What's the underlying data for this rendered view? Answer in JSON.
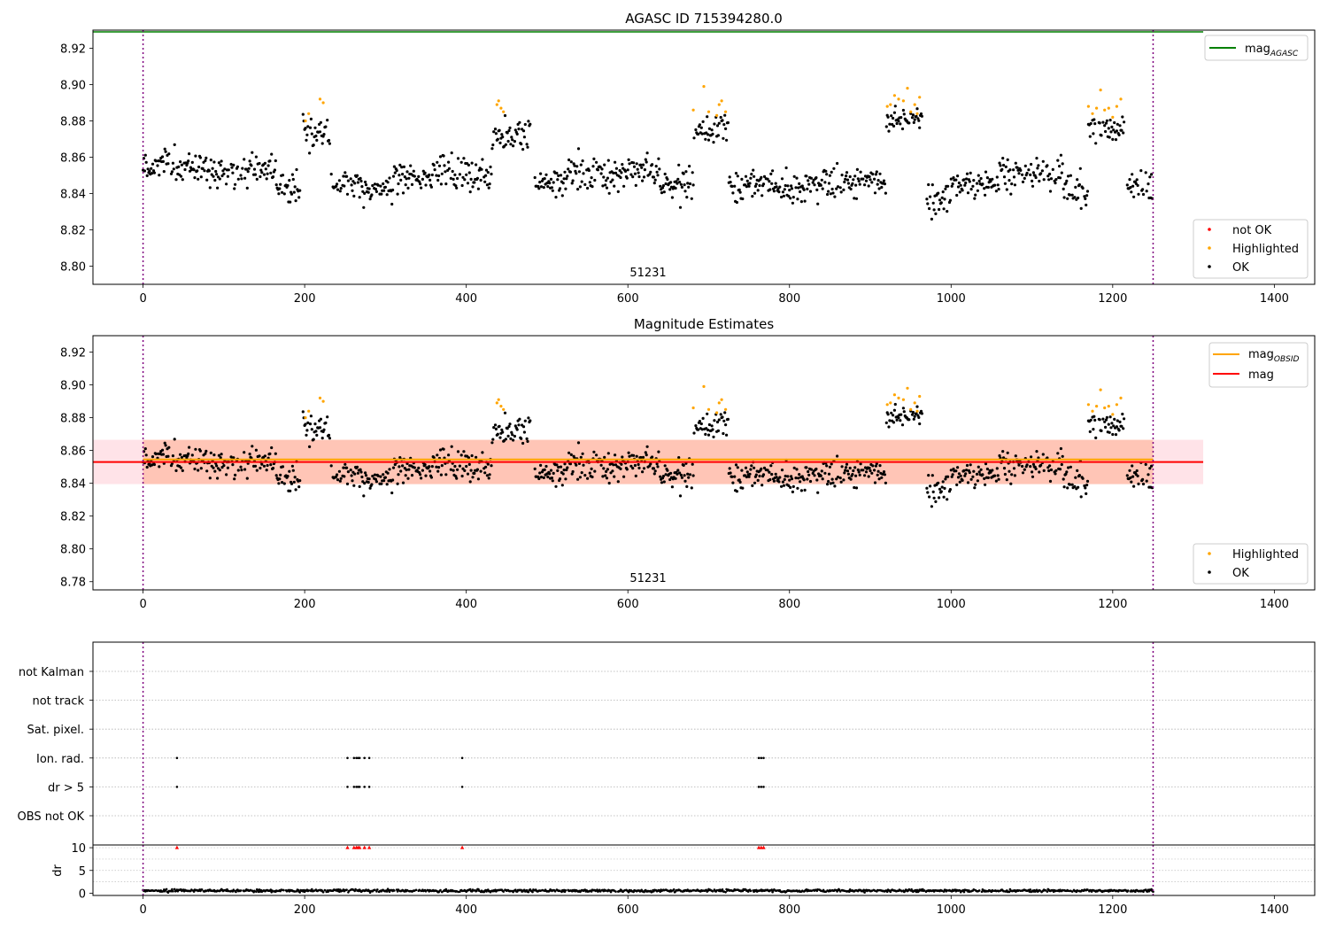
{
  "chart_data": [
    {
      "id": "agasc-panel",
      "type": "scatter",
      "title": "AGASC ID 715394280.0",
      "annotation": "51231",
      "xlim": [
        -62,
        1450
      ],
      "ylim": [
        8.79,
        8.93
      ],
      "xticks": [
        0,
        200,
        400,
        600,
        800,
        1000,
        1200,
        1400
      ],
      "yticks": [
        8.8,
        8.82,
        8.84,
        8.86,
        8.88,
        8.9,
        8.92
      ],
      "vlines": [
        0,
        1250
      ],
      "hlines": [
        {
          "name": "mag",
          "sub": "AGASC",
          "y": 8.929,
          "x0": -62,
          "x1": 1312,
          "color": "#008000"
        }
      ],
      "legends": [
        {
          "position": "upper-right",
          "entries": [
            {
              "kind": "line",
              "label": "mag",
              "sub": "AGASC",
              "color": "#008000"
            }
          ]
        },
        {
          "position": "lower-right",
          "entries": [
            {
              "kind": "dot",
              "label": "not OK",
              "color": "#ff0000"
            },
            {
              "kind": "dot",
              "label": "Highlighted",
              "color": "#ffa500"
            },
            {
              "kind": "dot",
              "label": "OK",
              "color": "#000000"
            }
          ]
        }
      ]
    },
    {
      "id": "estimates-panel",
      "type": "scatter",
      "title": "Magnitude Estimates",
      "annotation": "51231",
      "xlim": [
        -62,
        1450
      ],
      "ylim": [
        8.775,
        8.93
      ],
      "xticks": [
        0,
        200,
        400,
        600,
        800,
        1000,
        1200,
        1400
      ],
      "yticks": [
        8.78,
        8.8,
        8.82,
        8.84,
        8.86,
        8.88,
        8.9,
        8.92
      ],
      "vlines": [
        0,
        1250
      ],
      "bands": [
        {
          "y0": 8.8395,
          "y1": 8.8665,
          "x0": -62,
          "x1": 1312,
          "color": "#ffc0cb",
          "opacity": 0.45
        },
        {
          "y0": 8.8395,
          "y1": 8.8665,
          "x0": 0,
          "x1": 1250,
          "color": "#ffa07a",
          "opacity": 0.45
        }
      ],
      "hlines": [
        {
          "name": "mag",
          "sub": "OBSID",
          "y": 8.8545,
          "x0": 0,
          "x1": 1250,
          "color": "#ffa500"
        },
        {
          "name": "mag",
          "y": 8.853,
          "x0": -62,
          "x1": 1312,
          "color": "#ff0000"
        }
      ],
      "legends": [
        {
          "position": "upper-right",
          "entries": [
            {
              "kind": "line",
              "label": "mag",
              "sub": "OBSID",
              "color": "#ffa500"
            },
            {
              "kind": "line",
              "label": "mag",
              "color": "#ff0000"
            }
          ]
        },
        {
          "position": "lower-right",
          "entries": [
            {
              "kind": "dot",
              "label": "Highlighted",
              "color": "#ffa500"
            },
            {
              "kind": "dot",
              "label": "OK",
              "color": "#000000"
            }
          ]
        }
      ]
    },
    {
      "id": "flags-panel",
      "type": "scatter",
      "categories": [
        "OBS not OK",
        "dr > 5",
        "Ion. rad.",
        "Sat. pixel.",
        "not track",
        "not Kalman"
      ],
      "flagged_x": {
        "Ion. rad.": [
          42,
          253,
          261,
          264,
          266,
          268,
          274,
          280,
          395,
          762,
          765,
          768
        ],
        "dr > 5": [
          42,
          253,
          261,
          264,
          266,
          268,
          274,
          280,
          395,
          762,
          765,
          768
        ]
      },
      "xlim": [
        -62,
        1450
      ],
      "vlines": [
        0,
        1250
      ]
    },
    {
      "id": "dr-panel",
      "type": "scatter",
      "ylabel": "dr",
      "xlim": [
        -62,
        1450
      ],
      "ylim": [
        -0.5,
        10.6
      ],
      "xticks": [
        0,
        200,
        400,
        600,
        800,
        1000,
        1200,
        1400
      ],
      "yticks": [
        0,
        5,
        10
      ],
      "vlines": [
        0,
        1250
      ],
      "capped_points_at_10": [
        42,
        253,
        261,
        264,
        266,
        268,
        274,
        280,
        395,
        762,
        765,
        768
      ],
      "series": [
        {
          "name": "dr",
          "values_range": [
            0,
            1.2
          ]
        }
      ]
    }
  ],
  "mag_series": {
    "x_range": [
      0,
      1250
    ],
    "ok_segments": [
      {
        "x": [
          0,
          40
        ],
        "center": 8.856,
        "spread": 0.009
      },
      {
        "x": [
          40,
          90
        ],
        "center": 8.853,
        "spread": 0.007
      },
      {
        "x": [
          90,
          130
        ],
        "center": 8.85,
        "spread": 0.008
      },
      {
        "x": [
          130,
          165
        ],
        "center": 8.855,
        "spread": 0.006
      },
      {
        "x": [
          165,
          195
        ],
        "center": 8.843,
        "spread": 0.007
      },
      {
        "x": [
          198,
          232
        ],
        "center": 8.872,
        "spread": 0.008
      },
      {
        "x": [
          232,
          270
        ],
        "center": 8.847,
        "spread": 0.007
      },
      {
        "x": [
          270,
          310
        ],
        "center": 8.842,
        "spread": 0.006
      },
      {
        "x": [
          310,
          360
        ],
        "center": 8.849,
        "spread": 0.007
      },
      {
        "x": [
          360,
          410
        ],
        "center": 8.852,
        "spread": 0.008
      },
      {
        "x": [
          410,
          432
        ],
        "center": 8.85,
        "spread": 0.008
      },
      {
        "x": [
          432,
          480
        ],
        "center": 8.872,
        "spread": 0.008
      },
      {
        "x": [
          485,
          520
        ],
        "center": 8.846,
        "spread": 0.007
      },
      {
        "x": [
          520,
          600
        ],
        "center": 8.851,
        "spread": 0.009
      },
      {
        "x": [
          600,
          640
        ],
        "center": 8.853,
        "spread": 0.008
      },
      {
        "x": [
          640,
          682
        ],
        "center": 8.845,
        "spread": 0.009
      },
      {
        "x": [
          682,
          725
        ],
        "center": 8.876,
        "spread": 0.008
      },
      {
        "x": [
          725,
          780
        ],
        "center": 8.845,
        "spread": 0.007
      },
      {
        "x": [
          780,
          840
        ],
        "center": 8.843,
        "spread": 0.008
      },
      {
        "x": [
          840,
          920
        ],
        "center": 8.846,
        "spread": 0.008
      },
      {
        "x": [
          920,
          965
        ],
        "center": 8.881,
        "spread": 0.005
      },
      {
        "x": [
          970,
          1000
        ],
        "center": 8.838,
        "spread": 0.008
      },
      {
        "x": [
          1000,
          1060
        ],
        "center": 8.845,
        "spread": 0.006
      },
      {
        "x": [
          1060,
          1140
        ],
        "center": 8.852,
        "spread": 0.008
      },
      {
        "x": [
          1140,
          1170
        ],
        "center": 8.84,
        "spread": 0.009
      },
      {
        "x": [
          1170,
          1215
        ],
        "center": 8.876,
        "spread": 0.007
      },
      {
        "x": [
          1218,
          1250
        ],
        "center": 8.845,
        "spread": 0.008
      }
    ],
    "highlighted": [
      [
        201,
        8.88
      ],
      [
        205,
        8.884
      ],
      [
        219,
        8.892
      ],
      [
        223,
        8.89
      ],
      [
        438,
        8.889
      ],
      [
        440,
        8.891
      ],
      [
        443,
        8.887
      ],
      [
        446,
        8.885
      ],
      [
        681,
        8.886
      ],
      [
        694,
        8.899
      ],
      [
        700,
        8.885
      ],
      [
        710,
        8.883
      ],
      [
        713,
        8.889
      ],
      [
        716,
        8.891
      ],
      [
        721,
        8.885
      ],
      [
        921,
        8.888
      ],
      [
        925,
        8.889
      ],
      [
        930,
        8.894
      ],
      [
        935,
        8.892
      ],
      [
        941,
        8.891
      ],
      [
        946,
        8.898
      ],
      [
        950,
        8.885
      ],
      [
        955,
        8.889
      ],
      [
        958,
        8.884
      ],
      [
        961,
        8.893
      ],
      [
        1170,
        8.888
      ],
      [
        1175,
        8.884
      ],
      [
        1180,
        8.887
      ],
      [
        1185,
        8.897
      ],
      [
        1190,
        8.886
      ],
      [
        1195,
        8.887
      ],
      [
        1200,
        8.882
      ],
      [
        1205,
        8.888
      ],
      [
        1210,
        8.892
      ]
    ]
  }
}
